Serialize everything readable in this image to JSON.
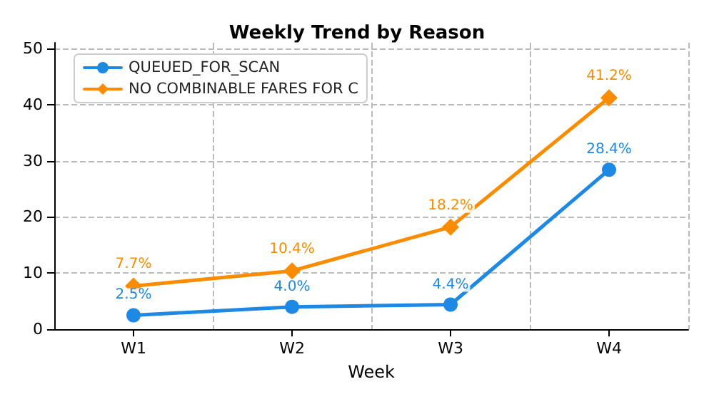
{
  "chart_data": {
    "type": "line",
    "title": "Weekly Trend by Reason",
    "xlabel": "Week",
    "categories": [
      "W1",
      "W2",
      "W3",
      "W4"
    ],
    "series": [
      {
        "name": "QUEUED_FOR_SCAN",
        "color": "#1e88e5",
        "marker": "circle",
        "values": [
          2.5,
          4.0,
          4.4,
          28.4
        ],
        "value_labels": [
          "2.5%",
          "4.0%",
          "4.4%",
          "28.4%"
        ]
      },
      {
        "name": "NO COMBINABLE FARES FOR C",
        "color": "#fb8c00",
        "marker": "diamond",
        "values": [
          7.7,
          10.4,
          18.2,
          41.2
        ],
        "value_labels": [
          "7.7%",
          "10.4%",
          "18.2%",
          "41.2%"
        ]
      }
    ],
    "ylim": [
      0,
      51
    ],
    "yticks": [
      0,
      10,
      20,
      30,
      40,
      50
    ],
    "grid": true,
    "legend": "top left",
    "line_style": "solid"
  }
}
